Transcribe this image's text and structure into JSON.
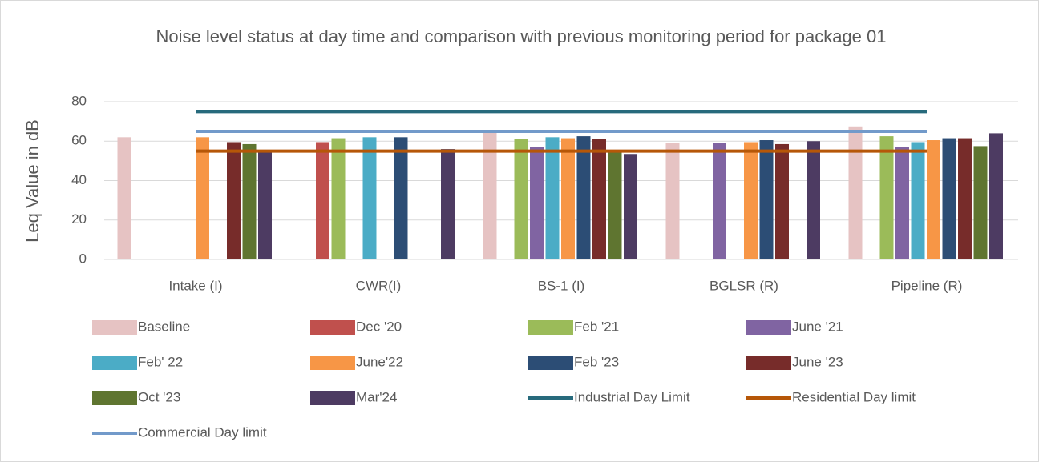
{
  "chart_data": {
    "type": "bar",
    "title": "Noise level status at day time and comparison with previous monitoring period for package 01",
    "y_label": "Leq Value in dB",
    "categories": [
      "Intake (I)",
      "CWR(I)",
      "BS-1 (I)",
      "BGLSR (R)",
      "Pipeline (R)"
    ],
    "ylim": [
      0,
      80
    ],
    "yticks": [
      0,
      20,
      40,
      60,
      80
    ],
    "grid": true,
    "legend": "bottom",
    "series": [
      {
        "name": "Baseline",
        "color": "#e6c3c3",
        "values": [
          62,
          null,
          65,
          59,
          67.5
        ]
      },
      {
        "name": "Dec '20",
        "color": "#c0504d",
        "values": [
          null,
          59.5,
          null,
          null,
          null
        ]
      },
      {
        "name": "Feb '21",
        "color": "#9bbb59",
        "values": [
          null,
          61.5,
          61,
          null,
          62.5
        ]
      },
      {
        "name": "June '21",
        "color": "#8064a2",
        "values": [
          null,
          null,
          57,
          59,
          57
        ]
      },
      {
        "name": "Feb' 22",
        "color": "#4bacc6",
        "values": [
          null,
          62,
          62,
          null,
          59.5
        ]
      },
      {
        "name": "June'22",
        "color": "#f79646",
        "values": [
          62,
          null,
          61.5,
          59.5,
          60.5
        ]
      },
      {
        "name": "Feb '23",
        "color": "#2c4d75",
        "values": [
          null,
          62,
          62.5,
          60.5,
          61.5
        ]
      },
      {
        "name": "June '23",
        "color": "#772c2a",
        "values": [
          59.5,
          null,
          61,
          58.5,
          61.5
        ]
      },
      {
        "name": "Oct '23",
        "color": "#5f7530",
        "values": [
          58.5,
          null,
          55,
          null,
          57.5
        ]
      },
      {
        "name": "Mar'24",
        "color": "#4d3b62",
        "values": [
          55,
          56,
          53.5,
          60,
          64
        ]
      },
      {
        "name": "Industrial Day Limit",
        "color": "#276a7c",
        "type": "line",
        "values": [
          75,
          75,
          75,
          75,
          75
        ]
      },
      {
        "name": "Residential Day limit",
        "color": "#b65708",
        "type": "line",
        "values": [
          55,
          55,
          55,
          55,
          55
        ]
      },
      {
        "name": "Commercial Day limit",
        "color": "#729aca",
        "type": "line",
        "values": [
          65,
          65,
          65,
          65,
          65
        ]
      }
    ]
  }
}
